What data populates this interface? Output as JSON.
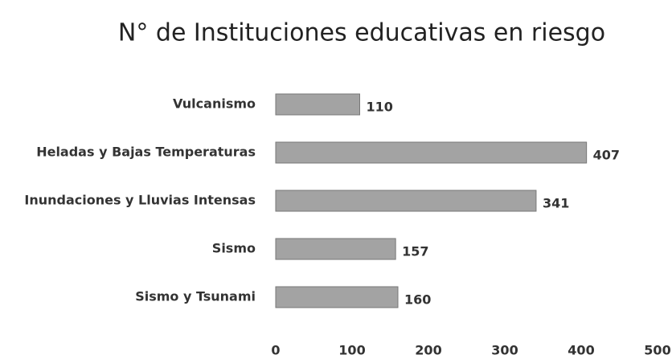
{
  "chart_data": {
    "type": "bar",
    "orientation": "horizontal",
    "title": "N° de Instituciones educativas en riesgo",
    "categories": [
      "Vulcanismo",
      "Heladas y Bajas Temperaturas",
      "Inundaciones y Lluvias Intensas",
      "Sismo",
      "Sismo y Tsunami"
    ],
    "values": [
      110,
      407,
      341,
      157,
      160
    ],
    "color": "#a3a3a3",
    "xlim": [
      0,
      500
    ],
    "xticks": [
      0,
      100,
      200,
      300,
      400,
      500
    ],
    "grid": false
  }
}
